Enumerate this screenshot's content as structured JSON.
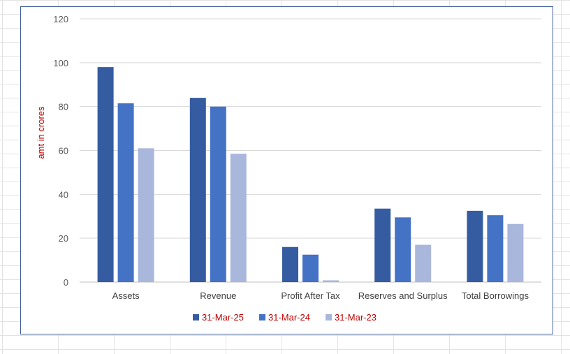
{
  "chart_data": {
    "type": "bar",
    "title": "",
    "xlabel": "",
    "ylabel": "amt in crores",
    "ylim": [
      0,
      120
    ],
    "yticks": [
      0,
      20,
      40,
      60,
      80,
      100,
      120
    ],
    "grid": true,
    "legend_position": "bottom",
    "categories": [
      "Assets",
      "Revenue",
      "Profit After Tax",
      "Reserves and Surplus",
      "Total Borrowings"
    ],
    "series": [
      {
        "name": "31-Mar-25",
        "color": "#355ca1",
        "values": [
          98,
          84,
          16,
          33.5,
          32.5
        ]
      },
      {
        "name": "31-Mar-24",
        "color": "#4472c4",
        "values": [
          81.5,
          80,
          12.5,
          29.5,
          30.5
        ]
      },
      {
        "name": "31-Mar-23",
        "color": "#a9b7dd",
        "values": [
          61,
          58.5,
          0.8,
          17,
          26.5
        ]
      }
    ],
    "colors": {
      "ylabel": "#c00000",
      "legend_text": "#c00000",
      "grid": "#d9d9d9",
      "frame_border": "#3f5f96"
    }
  }
}
